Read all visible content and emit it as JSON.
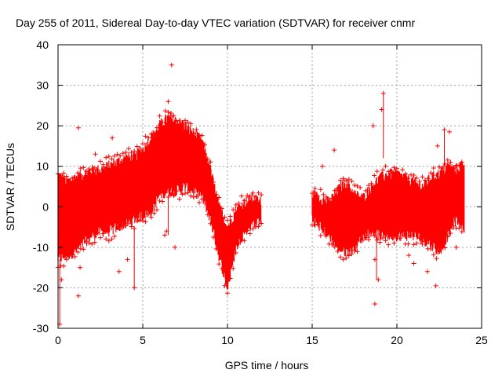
{
  "chart_data": {
    "type": "scatter",
    "title": "Day 255 of 2011, Sidereal Day-to-day VTEC variation (SDTVAR) for receiver cnmr",
    "xlabel": "GPS time / hours",
    "ylabel": "SDTVAR / TECUs",
    "xlim": [
      0,
      25
    ],
    "ylim": [
      -30,
      40
    ],
    "xticks": [
      0,
      5,
      10,
      15,
      20,
      25
    ],
    "yticks": [
      -30,
      -20,
      -10,
      0,
      10,
      20,
      30,
      40
    ],
    "xtick_labels": [
      "0",
      "5",
      "10",
      "15",
      "20",
      "25"
    ],
    "ytick_labels": [
      "-30",
      "-20",
      "-10",
      "0",
      "10",
      "20",
      "30",
      "40"
    ],
    "grid": true,
    "marker": "+",
    "series_color": "#ff0000",
    "series": [
      {
        "name": "SDTVAR",
        "band": {
          "x": [
            0,
            0.5,
            1,
            1.5,
            2,
            2.5,
            3,
            3.5,
            4,
            4.5,
            5,
            5.5,
            6,
            6.5,
            7,
            7.5,
            8,
            8.5,
            9,
            9.5,
            10,
            10.5,
            11,
            11.5,
            12
          ],
          "upper": [
            8,
            6,
            7,
            8,
            9,
            9,
            10,
            11,
            12,
            12,
            14,
            17,
            20,
            22,
            21,
            20,
            18,
            16,
            9,
            0,
            -5,
            -1,
            1,
            2,
            1
          ],
          "lower": [
            -13,
            -12,
            -11,
            -9,
            -7,
            -6,
            -6,
            -5,
            -4,
            -3,
            -2,
            -1,
            3,
            4,
            4,
            5,
            4,
            3,
            -3,
            -12,
            -20,
            -10,
            -6,
            -4,
            -3
          ]
        },
        "band2": {
          "x": [
            15,
            15.5,
            16,
            16.5,
            17,
            17.5,
            18,
            18.5,
            19,
            19.5,
            20,
            20.5,
            21,
            21.5,
            22,
            22.5,
            23,
            23.5,
            24
          ],
          "upper": [
            3,
            2,
            1,
            4,
            6,
            3,
            2,
            5,
            7,
            8,
            8,
            7,
            6,
            5,
            7,
            8,
            10,
            9,
            11
          ],
          "lower": [
            -3,
            -5,
            -7,
            -10,
            -11,
            -10,
            -7,
            -6,
            -7,
            -7,
            -7,
            -7,
            -7,
            -8,
            -9,
            -11,
            -7,
            -3,
            -5
          ]
        },
        "outliers": [
          {
            "x": 0.1,
            "y": -29
          },
          {
            "x": 0.2,
            "y": -18
          },
          {
            "x": 1.2,
            "y": 19.5
          },
          {
            "x": 1.2,
            "y": -22
          },
          {
            "x": 1.3,
            "y": -15
          },
          {
            "x": 4.5,
            "y": -20
          },
          {
            "x": 6.7,
            "y": 35
          },
          {
            "x": 6.5,
            "y": 26
          },
          {
            "x": 3.2,
            "y": 17
          },
          {
            "x": 3.6,
            "y": -16
          },
          {
            "x": 4.1,
            "y": -13
          },
          {
            "x": 6.4,
            "y": -6
          },
          {
            "x": 6.9,
            "y": -10
          },
          {
            "x": 6.3,
            "y": -7
          },
          {
            "x": 18.7,
            "y": -24
          },
          {
            "x": 18.9,
            "y": -18
          },
          {
            "x": 18.7,
            "y": -13
          },
          {
            "x": 18.6,
            "y": 20
          },
          {
            "x": 19.2,
            "y": 28
          },
          {
            "x": 19.1,
            "y": 24
          },
          {
            "x": 21.8,
            "y": -16
          },
          {
            "x": 22.3,
            "y": -19.5
          },
          {
            "x": 21.0,
            "y": -14
          },
          {
            "x": 22.8,
            "y": 19
          },
          {
            "x": 23.1,
            "y": 18.5
          },
          {
            "x": 22.4,
            "y": 15
          },
          {
            "x": 16.3,
            "y": 14
          },
          {
            "x": 15.6,
            "y": 10
          },
          {
            "x": 20.7,
            "y": -12
          },
          {
            "x": 23.5,
            "y": -10
          },
          {
            "x": 2.2,
            "y": 13
          },
          {
            "x": 5.4,
            "y": 15
          }
        ]
      }
    ]
  }
}
